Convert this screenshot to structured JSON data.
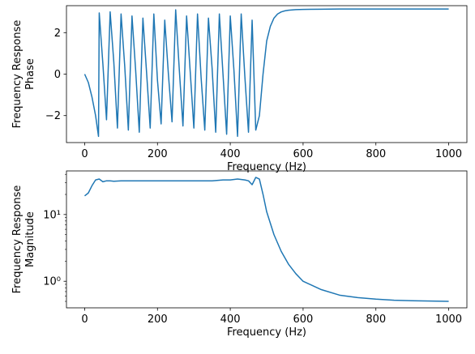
{
  "chart_data": [
    {
      "type": "line",
      "xlabel": "Frequency (Hz)",
      "ylabel_lines": [
        "Frequency Response",
        "Phase"
      ],
      "xlim": [
        -50,
        1050
      ],
      "ylim": [
        -3.3,
        3.3
      ],
      "xticks": [
        0,
        200,
        400,
        600,
        800,
        1000
      ],
      "xtick_labels": [
        "0",
        "200",
        "400",
        "600",
        "800",
        "1000"
      ],
      "yticks": [
        -2,
        0,
        2
      ],
      "ytick_labels": [
        "−2",
        "0",
        "2"
      ],
      "yscale": "linear",
      "grid": false,
      "series_color": "#1f77b4",
      "series": [
        {
          "x": [
            0,
            10,
            20,
            30,
            38,
            40,
            50,
            60,
            70,
            80,
            90,
            100,
            110,
            120,
            130,
            140,
            150,
            160,
            170,
            180,
            190,
            200,
            210,
            220,
            230,
            240,
            250,
            260,
            270,
            280,
            290,
            300,
            310,
            320,
            330,
            340,
            350,
            360,
            370,
            380,
            390,
            400,
            410,
            420,
            430,
            440,
            450,
            460,
            470,
            480,
            490,
            500,
            510,
            520,
            530,
            540,
            550,
            560,
            580,
            600,
            650,
            700,
            800,
            900,
            1000
          ],
          "y": [
            0,
            -0.4,
            -1.1,
            -2.0,
            -3.0,
            2.95,
            0.5,
            -2.2,
            3.0,
            0.6,
            -2.6,
            2.9,
            0.4,
            -2.7,
            2.8,
            0.2,
            -2.8,
            2.7,
            0.1,
            -2.6,
            2.9,
            -0.3,
            -2.4,
            2.6,
            0.0,
            -2.3,
            3.1,
            0.2,
            -2.5,
            2.8,
            0.1,
            -2.6,
            2.9,
            -0.2,
            -2.7,
            2.7,
            0.3,
            -2.8,
            2.9,
            0.0,
            -2.9,
            2.8,
            0.2,
            -3.0,
            2.9,
            -0.1,
            -2.8,
            2.6,
            -2.7,
            -2.0,
            0.0,
            1.6,
            2.3,
            2.7,
            2.9,
            3.0,
            3.05,
            3.08,
            3.11,
            3.12,
            3.13,
            3.14,
            3.14,
            3.14,
            3.14
          ]
        }
      ]
    },
    {
      "type": "line",
      "xlabel": "Frequency (Hz)",
      "ylabel_lines": [
        "Frequency Response",
        "Magnitude"
      ],
      "xlim": [
        -50,
        1050
      ],
      "ylim": [
        0.4,
        45
      ],
      "xticks": [
        0,
        200,
        400,
        600,
        800,
        1000
      ],
      "xtick_labels": [
        "0",
        "200",
        "400",
        "600",
        "800",
        "1000"
      ],
      "yscale": "log",
      "yticks": [
        1,
        10
      ],
      "ytick_labels": [
        "10⁰",
        "10¹"
      ],
      "grid": false,
      "series_color": "#1f77b4",
      "series": [
        {
          "x": [
            0,
            10,
            20,
            30,
            40,
            50,
            60,
            70,
            80,
            100,
            150,
            200,
            250,
            300,
            350,
            380,
            400,
            420,
            440,
            450,
            460,
            470,
            480,
            490,
            500,
            520,
            540,
            560,
            580,
            600,
            650,
            700,
            750,
            800,
            850,
            900,
            950,
            1000
          ],
          "y": [
            19,
            21,
            27,
            33,
            34,
            31,
            32,
            32,
            31.5,
            32,
            32,
            32,
            32,
            32,
            32,
            33,
            33,
            34,
            33,
            32,
            28,
            36,
            34,
            20,
            11,
            5.0,
            2.8,
            1.8,
            1.3,
            1.0,
            0.75,
            0.62,
            0.57,
            0.54,
            0.52,
            0.51,
            0.505,
            0.5
          ]
        }
      ]
    }
  ]
}
